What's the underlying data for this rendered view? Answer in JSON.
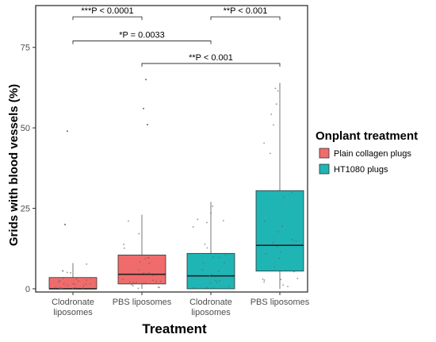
{
  "chart_data": {
    "type": "boxplot",
    "xlabel": "Treatment",
    "ylabel": "Grids with blood vessels (%)",
    "ylim": [
      -1,
      88
    ],
    "yticks": [
      0,
      25,
      50,
      75
    ],
    "categories": [
      {
        "line1": "Clodronate",
        "line2": "liposomes"
      },
      {
        "line1": "PBS liposomes",
        "line2": ""
      },
      {
        "line1": "Clodronate",
        "line2": "liposomes"
      },
      {
        "line1": "PBS liposomes",
        "line2": ""
      }
    ],
    "legend": {
      "title": "Onplant treatment",
      "placement": "right",
      "entries": [
        {
          "label": "Plain collagen plugs",
          "color": "#f06b6b"
        },
        {
          "label": "HT1080 plugs",
          "color": "#1fb5b5"
        }
      ]
    },
    "boxes": [
      {
        "group": "Plain collagen plugs",
        "color": "#f06b6b",
        "min": 0,
        "q1": 0,
        "median": 0,
        "q3": 3.5,
        "max": 8
      },
      {
        "group": "Plain collagen plugs",
        "color": "#f06b6b",
        "min": 0,
        "q1": 1.5,
        "median": 4.5,
        "q3": 10.5,
        "max": 23
      },
      {
        "group": "HT1080 plugs",
        "color": "#1fb5b5",
        "min": 0,
        "q1": 0,
        "median": 4,
        "q3": 11,
        "max": 27
      },
      {
        "group": "HT1080 plugs",
        "color": "#1fb5b5",
        "min": 0,
        "q1": 5.5,
        "median": 13.5,
        "q3": 30.5,
        "max": 64
      }
    ],
    "outliers": [
      {
        "box": 0,
        "value": 49
      },
      {
        "box": 0,
        "value": 20
      },
      {
        "box": 1,
        "value": 65
      },
      {
        "box": 1,
        "value": 56
      },
      {
        "box": 1,
        "value": 51
      }
    ],
    "annotations": [
      {
        "text": "***P < 0.0001",
        "from": 0,
        "to": 1,
        "y": 84.5
      },
      {
        "text": "**P < 0.001",
        "from": 2,
        "to": 3,
        "y": 84.5
      },
      {
        "text": "*P = 0.0033",
        "from": 0,
        "to": 2,
        "y": 77
      },
      {
        "text": "**P < 0.001",
        "from": 1,
        "to": 3,
        "y": 70
      }
    ]
  }
}
